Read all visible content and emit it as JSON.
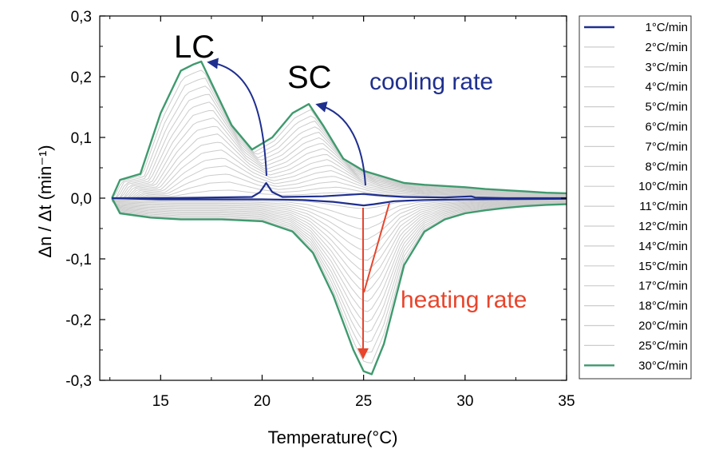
{
  "chart_data": {
    "type": "line",
    "title": "",
    "xlabel": "Temperature(°C)",
    "ylabel": "Δn / Δt (min⁻¹)",
    "xlim": [
      12,
      35
    ],
    "ylim": [
      -0.3,
      0.3
    ],
    "xticks": [
      15,
      20,
      25,
      30,
      35
    ],
    "xtick_labels": [
      "15",
      "20",
      "25",
      "30",
      "35"
    ],
    "yticks": [
      0.3,
      0.2,
      0.1,
      0.0,
      -0.1,
      -0.2,
      -0.3
    ],
    "ytick_labels": [
      "0,3",
      "0,2",
      "0,1",
      "0,0",
      "-0,1",
      "-0,2",
      "-0,3"
    ],
    "legend": {
      "placement": "right-outside",
      "entries": [
        "1°C/min",
        "2°C/min",
        "3°C/min",
        "4°C/min",
        "5°C/min",
        "6°C/min",
        "7°C/min",
        "8°C/min",
        "10°C/min",
        "11°C/min",
        "12°C/min",
        "14°C/min",
        "15°C/min",
        "17°C/min",
        "18°C/min",
        "20°C/min",
        "25°C/min",
        "30°C/min"
      ],
      "colors": [
        "#1f2f8f",
        "#cccccc",
        "#cccccc",
        "#cccccc",
        "#cccccc",
        "#cccccc",
        "#cccccc",
        "#cccccc",
        "#cccccc",
        "#cccccc",
        "#cccccc",
        "#cccccc",
        "#cccccc",
        "#cccccc",
        "#cccccc",
        "#cccccc",
        "#cccccc",
        "#3f9a6e"
      ]
    },
    "series": [
      {
        "name": "30°C/min (cooling)",
        "color": "#3f9a6e",
        "x": [
          12.6,
          13.0,
          14.0,
          15.0,
          16.0,
          16.6,
          17.0,
          18.5,
          19.5,
          20.5,
          21.5,
          22.3,
          23.0,
          24.0,
          25.0,
          26.0,
          27.0,
          28.0,
          29.0,
          30.0,
          31.0,
          32.0,
          33.0,
          34.0,
          35.0
        ],
        "y": [
          0.0,
          0.03,
          0.04,
          0.14,
          0.21,
          0.22,
          0.225,
          0.12,
          0.08,
          0.1,
          0.14,
          0.155,
          0.12,
          0.065,
          0.045,
          0.035,
          0.025,
          0.022,
          0.02,
          0.018,
          0.015,
          0.013,
          0.011,
          0.009,
          0.008
        ]
      },
      {
        "name": "30°C/min (heating)",
        "color": "#3f9a6e",
        "x": [
          12.6,
          13.0,
          14.5,
          16.0,
          18.0,
          20.0,
          21.5,
          22.5,
          23.5,
          24.5,
          25.0,
          25.4,
          26.0,
          27.0,
          28.0,
          29.0,
          30.0,
          31.0,
          32.0,
          33.0,
          34.0,
          35.0
        ],
        "y": [
          0.0,
          -0.025,
          -0.032,
          -0.035,
          -0.035,
          -0.038,
          -0.055,
          -0.09,
          -0.16,
          -0.25,
          -0.285,
          -0.29,
          -0.24,
          -0.11,
          -0.055,
          -0.035,
          -0.025,
          -0.02,
          -0.016,
          -0.013,
          -0.011,
          -0.01
        ]
      },
      {
        "name": "1°C/min (cooling)",
        "color": "#1f2f8f",
        "x": [
          12.6,
          15.0,
          19.5,
          19.9,
          20.2,
          20.5,
          21.0,
          23.0,
          24.0,
          25.0,
          26.0,
          27.0,
          29.0,
          30.3,
          30.5,
          32.0,
          35.0
        ],
        "y": [
          0.0,
          0.0,
          0.002,
          0.01,
          0.025,
          0.01,
          0.002,
          0.003,
          0.005,
          0.007,
          0.004,
          0.002,
          0.001,
          0.003,
          0.001,
          0.0,
          0.0
        ]
      },
      {
        "name": "1°C/min (heating)",
        "color": "#1f2f8f",
        "x": [
          12.6,
          15.0,
          20.0,
          22.0,
          23.5,
          24.5,
          25.0,
          25.5,
          26.5,
          28.0,
          30.0,
          35.0
        ],
        "y": [
          0.0,
          -0.002,
          -0.002,
          -0.003,
          -0.006,
          -0.01,
          -0.012,
          -0.01,
          -0.005,
          -0.003,
          -0.002,
          -0.001
        ]
      }
    ],
    "annotations": {
      "lc": "LC",
      "sc": "SC",
      "cooling": "cooling rate",
      "heating": "heating rate"
    },
    "annotation_colors": {
      "cooling": "#1f2f8f",
      "heating": "#e8452c"
    }
  }
}
